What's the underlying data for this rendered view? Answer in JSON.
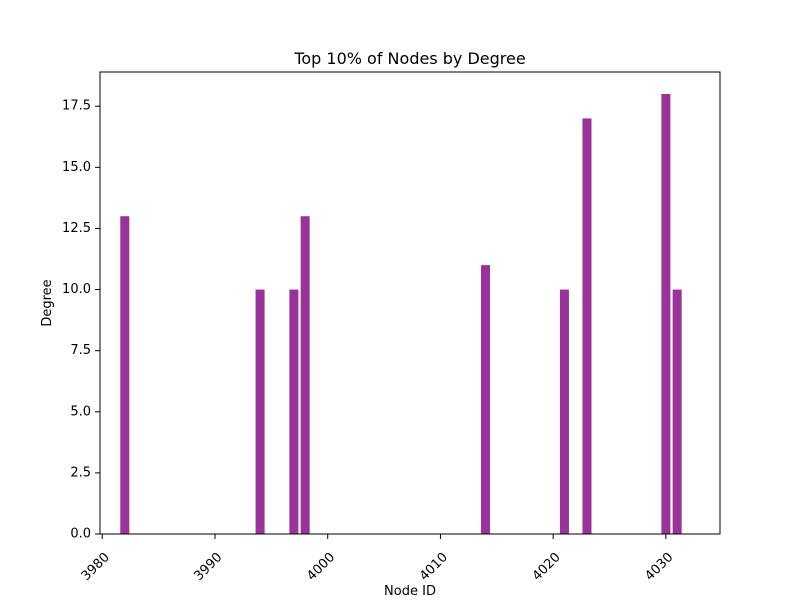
{
  "chart_data": {
    "type": "bar",
    "title": "Top 10% of Nodes by Degree",
    "xlabel": "Node ID",
    "ylabel": "Degree",
    "x": [
      3982,
      3994,
      3997,
      3998,
      4014,
      4021,
      4023,
      4030,
      4031
    ],
    "values": [
      13,
      10,
      10,
      13,
      11,
      10,
      17,
      18,
      10
    ],
    "bar_color": "#993399",
    "xlim": [
      3979.8,
      4034.8
    ],
    "ylim": [
      0,
      18.9
    ],
    "x_ticks": [
      3980,
      3990,
      4000,
      4010,
      4020,
      4030
    ],
    "y_ticks": [
      0.0,
      2.5,
      5.0,
      7.5,
      10.0,
      12.5,
      15.0,
      17.5
    ],
    "x_tick_rotation": 45,
    "grid": false,
    "legend": "none"
  }
}
